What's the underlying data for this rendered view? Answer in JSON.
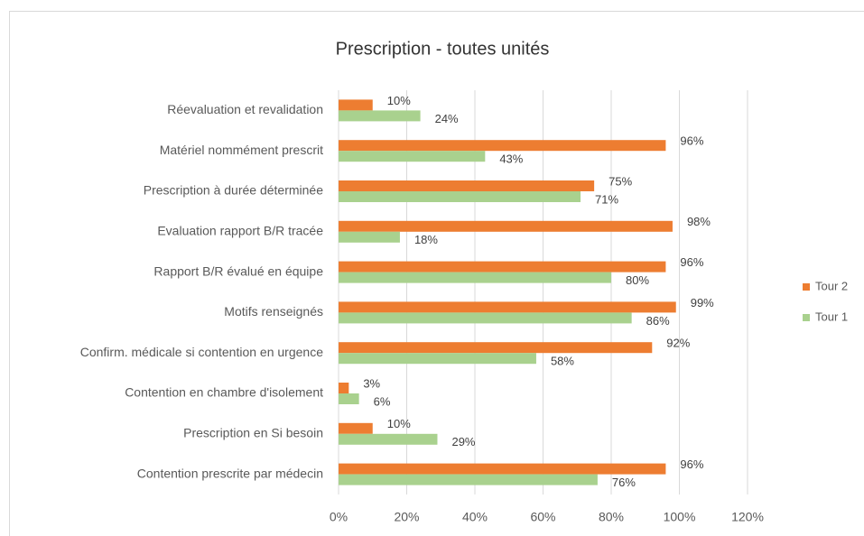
{
  "chart_data": {
    "type": "barh",
    "title": "Prescription - toutes unités",
    "categories": [
      "Réevaluation et revalidation",
      "Matériel nommément prescrit",
      "Prescription à durée déterminée",
      "Evaluation rapport B/R tracée",
      "Rapport B/R évalué en équipe",
      "Motifs renseignés",
      "Confirm. médicale si contention en urgence",
      "Contention en chambre d'isolement",
      "Prescription en Si besoin",
      "Contention prescrite par médecin"
    ],
    "series": [
      {
        "name": "Tour 2",
        "color": "#ed7d31",
        "values": [
          10,
          96,
          75,
          98,
          96,
          99,
          92,
          3,
          10,
          96
        ],
        "value_labels": [
          "10%",
          "96%",
          "75%",
          "98%",
          "96%",
          "99%",
          "92%",
          "3%",
          "10%",
          "96%"
        ]
      },
      {
        "name": "Tour 1",
        "color": "#a9d18e",
        "values": [
          24,
          43,
          71,
          18,
          80,
          86,
          58,
          6,
          29,
          76
        ],
        "value_labels": [
          "24%",
          "43%",
          "71%",
          "18%",
          "80%",
          "86%",
          "58%",
          "6%",
          "29%",
          "76%"
        ]
      }
    ],
    "xlim": [
      0,
      120
    ],
    "xticks": [
      {
        "value": 0,
        "label": "0%"
      },
      {
        "value": 20,
        "label": "20%"
      },
      {
        "value": 40,
        "label": "40%"
      },
      {
        "value": 60,
        "label": "60%"
      },
      {
        "value": 80,
        "label": "80%"
      },
      {
        "value": 100,
        "label": "100%"
      },
      {
        "value": 120,
        "label": "120%"
      }
    ],
    "grid": true,
    "legend": "right"
  }
}
